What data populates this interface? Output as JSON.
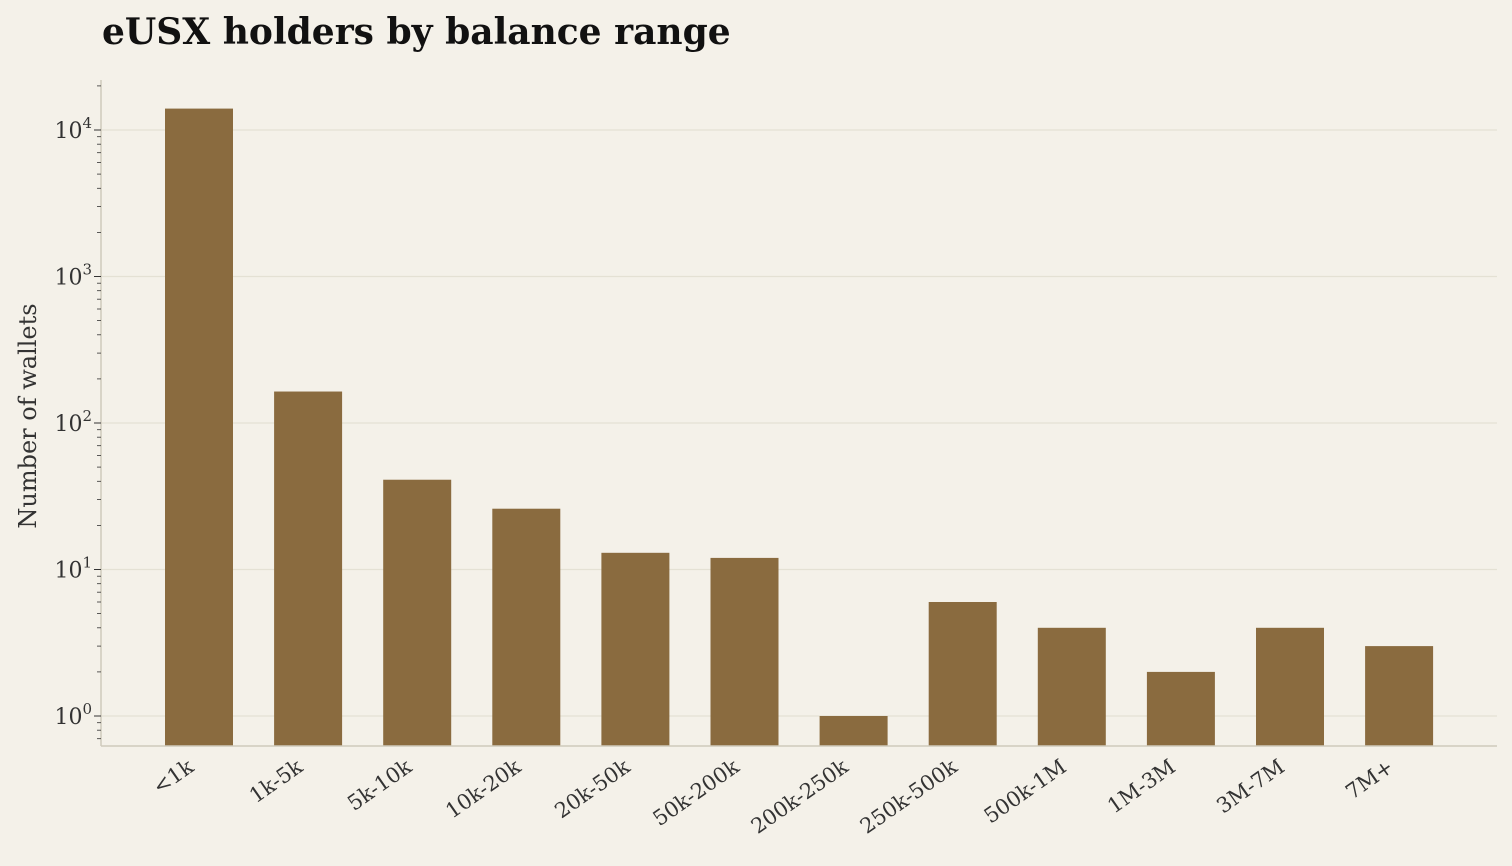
{
  "chart_data": {
    "type": "bar",
    "title": "eUSX holders by balance range",
    "xlabel": "",
    "ylabel": "Number of wallets",
    "yscale": "log",
    "ylim": [
      0.6,
      22000
    ],
    "grid": true,
    "yticks": [
      {
        "base": "10",
        "exp": "0",
        "value": 1
      },
      {
        "base": "10",
        "exp": "1",
        "value": 10
      },
      {
        "base": "10",
        "exp": "2",
        "value": 100
      },
      {
        "base": "10",
        "exp": "3",
        "value": 1000
      },
      {
        "base": "10",
        "exp": "4",
        "value": 10000
      }
    ],
    "categories": [
      "<1k",
      "1k-5k",
      "5k-10k",
      "10k-20k",
      "20k-50k",
      "50k-200k",
      "200k-250k",
      "250k-500k",
      "500k-1M",
      "1M-3M",
      "3M-7M",
      "7M+"
    ],
    "values": [
      14000,
      164,
      41,
      26,
      13,
      12,
      1,
      6,
      4,
      2,
      4,
      3
    ],
    "colors": {
      "bar": "#8a6b3f",
      "background": "#f4f1e9",
      "grid": "#e4e1d4",
      "axis": "#cfcabc"
    }
  }
}
